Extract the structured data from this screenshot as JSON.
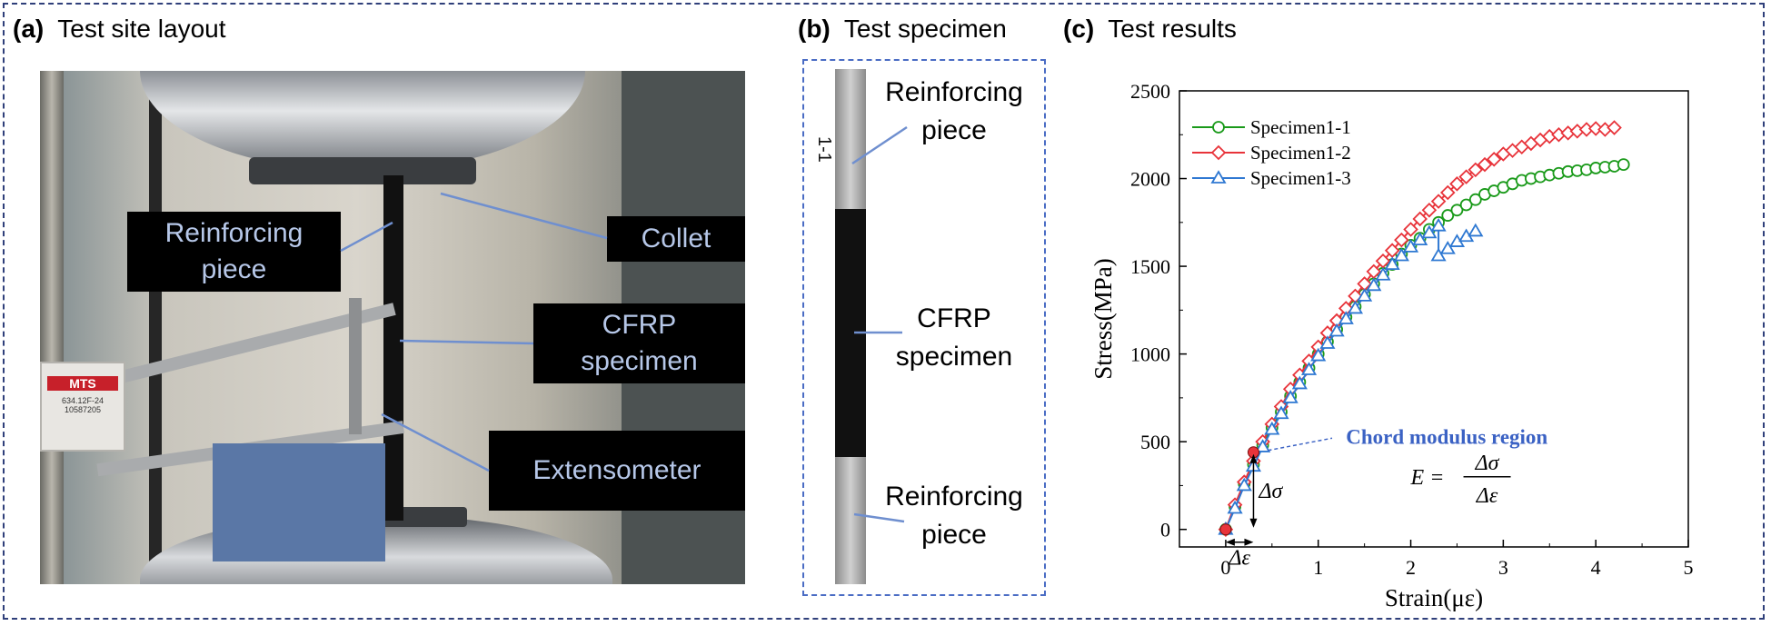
{
  "panels": {
    "a": {
      "letter": "(a)",
      "title": "Test site layout"
    },
    "b": {
      "letter": "(b)",
      "title": "Test specimen"
    },
    "c": {
      "letter": "(c)",
      "title": "Test results"
    }
  },
  "photo": {
    "callouts": {
      "reinforcing_line1": "Reinforcing",
      "reinforcing_line2": "piece",
      "collet": "Collet",
      "cfrp_line1": "CFRP",
      "cfrp_line2": "specimen",
      "extensometer": "Extensometer"
    },
    "mts_label": "MTS",
    "mts_small1": "634.12F-24",
    "mts_small2": "10587205"
  },
  "specimen": {
    "mark": "1-1",
    "top_line1": "Reinforcing",
    "top_line2": "piece",
    "mid_line1": "CFRP",
    "mid_line2": "specimen",
    "bot_line1": "Reinforcing",
    "bot_line2": "piece"
  },
  "chart_data": {
    "type": "line",
    "xlabel": "Strain(με)",
    "ylabel": "Stress(MPa)",
    "xlim": [
      -0.5,
      5
    ],
    "ylim": [
      -100,
      2500
    ],
    "xticks": [
      0,
      1,
      2,
      3,
      4,
      5
    ],
    "yticks": [
      0,
      500,
      1000,
      1500,
      2000,
      2500
    ],
    "legend_position": "top-left",
    "series": [
      {
        "name": "Specimen1-1",
        "color": "#1a9a1a",
        "marker": "circle",
        "x": [
          0,
          0.1,
          0.2,
          0.3,
          0.4,
          0.5,
          0.6,
          0.7,
          0.8,
          0.9,
          1.0,
          1.1,
          1.2,
          1.3,
          1.4,
          1.5,
          1.6,
          1.7,
          1.8,
          1.9,
          2.0,
          2.1,
          2.2,
          2.3,
          2.4,
          2.5,
          2.6,
          2.7,
          2.8,
          2.9,
          3.0,
          3.1,
          3.2,
          3.3,
          3.4,
          3.5,
          3.6,
          3.7,
          3.8,
          3.9,
          4.0,
          4.1,
          4.2,
          4.3
        ],
        "y": [
          0,
          130,
          260,
          370,
          480,
          580,
          670,
          760,
          840,
          920,
          1000,
          1070,
          1140,
          1210,
          1270,
          1340,
          1400,
          1460,
          1510,
          1570,
          1620,
          1660,
          1710,
          1750,
          1790,
          1820,
          1850,
          1880,
          1910,
          1930,
          1950,
          1970,
          1990,
          2000,
          2010,
          2020,
          2030,
          2040,
          2045,
          2050,
          2060,
          2065,
          2070,
          2080
        ]
      },
      {
        "name": "Specimen1-2",
        "color": "#e8333a",
        "marker": "diamond",
        "x": [
          0,
          0.1,
          0.2,
          0.3,
          0.4,
          0.5,
          0.6,
          0.7,
          0.8,
          0.9,
          1.0,
          1.1,
          1.2,
          1.3,
          1.4,
          1.5,
          1.6,
          1.7,
          1.8,
          1.9,
          2.0,
          2.1,
          2.2,
          2.3,
          2.4,
          2.5,
          2.6,
          2.7,
          2.8,
          2.9,
          3.0,
          3.1,
          3.2,
          3.3,
          3.4,
          3.5,
          3.6,
          3.7,
          3.8,
          3.9,
          4.0,
          4.1,
          4.2
        ],
        "y": [
          0,
          140,
          270,
          390,
          500,
          600,
          700,
          800,
          880,
          960,
          1040,
          1120,
          1190,
          1260,
          1330,
          1400,
          1470,
          1530,
          1590,
          1650,
          1710,
          1770,
          1820,
          1870,
          1920,
          1970,
          2010,
          2050,
          2080,
          2110,
          2140,
          2160,
          2180,
          2200,
          2220,
          2240,
          2250,
          2260,
          2270,
          2280,
          2285,
          2280,
          2290
        ]
      },
      {
        "name": "Specimen1-3",
        "color": "#2e78d2",
        "marker": "triangle",
        "x": [
          0,
          0.1,
          0.2,
          0.3,
          0.4,
          0.5,
          0.6,
          0.7,
          0.8,
          0.9,
          1.0,
          1.1,
          1.2,
          1.3,
          1.4,
          1.5,
          1.6,
          1.7,
          1.8,
          1.9,
          2.0,
          2.1,
          2.2,
          2.3,
          2.3,
          2.4,
          2.5,
          2.6,
          2.7
        ],
        "y": [
          0,
          120,
          250,
          360,
          470,
          570,
          660,
          750,
          830,
          910,
          990,
          1060,
          1130,
          1200,
          1260,
          1330,
          1390,
          1450,
          1510,
          1560,
          1610,
          1650,
          1690,
          1730,
          1560,
          1600,
          1640,
          1670,
          1700
        ]
      }
    ],
    "annotations": {
      "region_label": "Chord modulus region",
      "formula_lhs": "E =",
      "formula_num": "Δσ",
      "formula_den": "Δε",
      "delta_sigma": "Δσ",
      "delta_epsilon": "Δε",
      "chord_points": [
        [
          0,
          0
        ],
        [
          0.3,
          440
        ]
      ]
    }
  }
}
